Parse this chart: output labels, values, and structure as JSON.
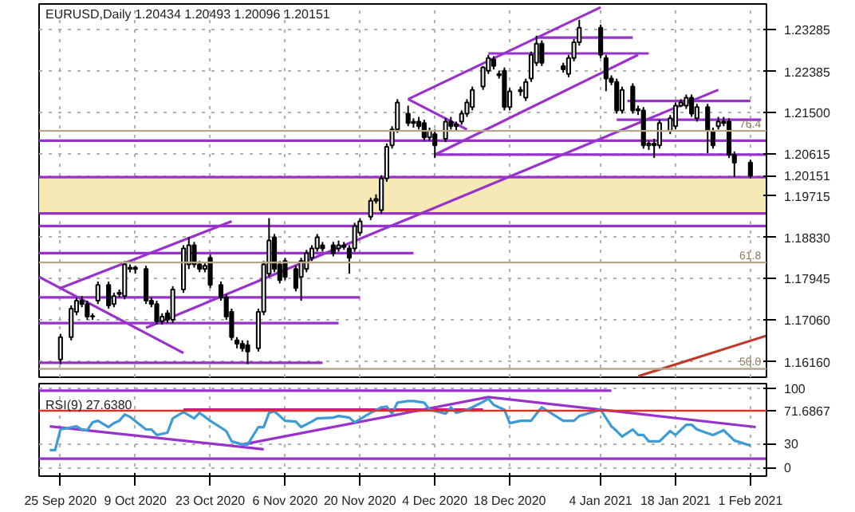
{
  "chart_data": [
    {
      "type": "candlestick",
      "title": "EURUSD,Daily  1.20434 1.20493 1.20096 1.20151",
      "tick_labels": "y",
      "grid": true,
      "xlim": [
        "2020-09-21",
        "2021-02-04"
      ],
      "ylim": [
        1.1583,
        1.2383
      ],
      "xticks": [
        "2020-09-25",
        "2020-10-09",
        "2020-10-23",
        "2020-11-06",
        "2020-11-20",
        "2020-12-04",
        "2020-12-18",
        "2021-01-04",
        "2021-01-18",
        "2021-02-01"
      ],
      "yticks": [
        {
          "value": 1.1616,
          "label": "1.16160"
        },
        {
          "value": 1.1706,
          "label": "1.17060"
        },
        1.17945,
        {
          "value": 1.1883,
          "label": "1.18830"
        },
        1.19715,
        1.20151,
        1.20615,
        {
          "value": 1.215,
          "label": "1.21500"
        },
        1.22385,
        1.23285
      ],
      "x": [
        "2020-09-25",
        "2020-09-27",
        "2020-09-28",
        "2020-09-29",
        "2020-09-30",
        "2020-10-01",
        "2020-10-02",
        "2020-10-04",
        "2020-10-05",
        "2020-10-06",
        "2020-10-07",
        "2020-10-08",
        "2020-10-09",
        "2020-10-11",
        "2020-10-12",
        "2020-10-13",
        "2020-10-14",
        "2020-10-15",
        "2020-10-16",
        "2020-10-18",
        "2020-10-19",
        "2020-10-20",
        "2020-10-21",
        "2020-10-22",
        "2020-10-23",
        "2020-10-25",
        "2020-10-26",
        "2020-10-27",
        "2020-10-28",
        "2020-10-29",
        "2020-10-30",
        "2020-11-01",
        "2020-11-02",
        "2020-11-03",
        "2020-11-04",
        "2020-11-05",
        "2020-11-06",
        "2020-11-08",
        "2020-11-09",
        "2020-11-10",
        "2020-11-11",
        "2020-11-12",
        "2020-11-13",
        "2020-11-15",
        "2020-11-16",
        "2020-11-17",
        "2020-11-18",
        "2020-11-19",
        "2020-11-20",
        "2020-11-22",
        "2020-11-23",
        "2020-11-24",
        "2020-11-25",
        "2020-11-26",
        "2020-11-27",
        "2020-11-29",
        "2020-11-30",
        "2020-12-01",
        "2020-12-02",
        "2020-12-03",
        "2020-12-04",
        "2020-12-06",
        "2020-12-07",
        "2020-12-08",
        "2020-12-09",
        "2020-12-10",
        "2020-12-11",
        "2020-12-13",
        "2020-12-14",
        "2020-12-15",
        "2020-12-16",
        "2020-12-17",
        "2020-12-18",
        "2020-12-20",
        "2020-12-21",
        "2020-12-22",
        "2020-12-23",
        "2020-12-24",
        "2020-12-28",
        "2020-12-29",
        "2020-12-30",
        "2020-12-31",
        "2021-01-04",
        "2021-01-05",
        "2021-01-06",
        "2021-01-07",
        "2021-01-08",
        "2021-01-10",
        "2021-01-11",
        "2021-01-12",
        "2021-01-13",
        "2021-01-14",
        "2021-01-15",
        "2021-01-17",
        "2021-01-18",
        "2021-01-19",
        "2021-01-20",
        "2021-01-21",
        "2021-01-22",
        "2021-01-24",
        "2021-01-25",
        "2021-01-26",
        "2021-01-27",
        "2021-01-28",
        "2021-01-29",
        "2021-02-01"
      ],
      "ohlc": [
        [
          1.1621,
          1.1676,
          1.1611,
          1.1669
        ],
        [
          1.1669,
          1.1737,
          1.1662,
          1.173
        ],
        [
          1.1723,
          1.1754,
          1.1716,
          1.1747
        ],
        [
          1.1747,
          1.1757,
          1.1733,
          1.174
        ],
        [
          1.174,
          1.1747,
          1.1706,
          1.1713
        ],
        [
          1.1713,
          1.172,
          1.1706,
          1.1714
        ],
        [
          1.1747,
          1.1788,
          1.174,
          1.1781
        ],
        [
          1.1781,
          1.1788,
          1.173,
          1.1737
        ],
        [
          1.174,
          1.1764,
          1.1733,
          1.1757
        ],
        [
          1.1764,
          1.1771,
          1.1754,
          1.1761
        ],
        [
          1.1757,
          1.1832,
          1.175,
          1.1825
        ],
        [
          1.1818,
          1.1825,
          1.1808,
          1.1815
        ],
        [
          1.1815,
          1.1822,
          1.1805,
          1.1818
        ],
        [
          1.1815,
          1.1822,
          1.174,
          1.1747
        ],
        [
          1.1747,
          1.1754,
          1.1733,
          1.174
        ],
        [
          1.174,
          1.1747,
          1.1696,
          1.1703
        ],
        [
          1.1703,
          1.172,
          1.1696,
          1.1713
        ],
        [
          1.172,
          1.1727,
          1.1699,
          1.1706
        ],
        [
          1.1706,
          1.1778,
          1.1699,
          1.1771
        ],
        [
          1.1771,
          1.1866,
          1.1764,
          1.1859
        ],
        [
          1.1825,
          1.1883,
          1.1815,
          1.1866
        ],
        [
          1.1866,
          1.1873,
          1.1818,
          1.1825
        ],
        [
          1.1825,
          1.1832,
          1.1808,
          1.1815
        ],
        [
          1.1815,
          1.1829,
          1.1808,
          1.1822
        ],
        [
          1.1839,
          1.1846,
          1.1774,
          1.1781
        ],
        [
          1.1781,
          1.1788,
          1.1747,
          1.1754
        ],
        [
          1.1754,
          1.1761,
          1.1706,
          1.1713
        ],
        [
          1.1723,
          1.173,
          1.1662,
          1.1669
        ],
        [
          1.1662,
          1.1669,
          1.1645,
          1.1655
        ],
        [
          1.1655,
          1.1662,
          1.1638,
          1.1645
        ],
        [
          1.1652,
          1.1662,
          1.1611,
          1.1638
        ],
        [
          1.1645,
          1.173,
          1.1638,
          1.1723
        ],
        [
          1.1723,
          1.1832,
          1.1716,
          1.1825
        ],
        [
          1.1805,
          1.1924,
          1.1798,
          1.1876
        ],
        [
          1.1883,
          1.189,
          1.1808,
          1.1815
        ],
        [
          1.1825,
          1.1832,
          1.1784,
          1.1791
        ],
        [
          1.1832,
          1.1839,
          1.1791,
          1.1798
        ],
        [
          1.1815,
          1.1822,
          1.1767,
          1.1774
        ],
        [
          1.1798,
          1.1839,
          1.1747,
          1.1832
        ],
        [
          1.1815,
          1.1856,
          1.1808,
          1.1849
        ],
        [
          1.1839,
          1.1866,
          1.1832,
          1.1859
        ],
        [
          1.1859,
          1.189,
          1.1852,
          1.1883
        ],
        [
          1.1866,
          1.1873,
          1.1852,
          1.1859
        ],
        [
          1.1866,
          1.1873,
          1.1842,
          1.1849
        ],
        [
          1.1859,
          1.1876,
          1.1852,
          1.1866
        ],
        [
          1.1866,
          1.1873,
          1.1856,
          1.1862
        ],
        [
          1.1859,
          1.1866,
          1.1805,
          1.1839
        ],
        [
          1.1859,
          1.1914,
          1.1852,
          1.1907
        ],
        [
          1.1893,
          1.1924,
          1.1886,
          1.1917
        ],
        [
          1.1927,
          1.1968,
          1.192,
          1.1961
        ],
        [
          1.1961,
          1.1975,
          1.1955,
          1.1965
        ],
        [
          1.1941,
          1.2016,
          1.1934,
          1.2009
        ],
        [
          1.2009,
          1.2084,
          1.2002,
          1.2077
        ],
        [
          1.208,
          1.2121,
          1.2073,
          1.2114
        ],
        [
          1.2114,
          1.2179,
          1.2107,
          1.2172
        ],
        [
          1.2148,
          1.2165,
          1.2121,
          1.2128
        ],
        [
          1.2128,
          1.2138,
          1.2118,
          1.2131
        ],
        [
          1.2131,
          1.2141,
          1.2114,
          1.2121
        ],
        [
          1.2128,
          1.2135,
          1.209,
          1.2097
        ],
        [
          1.2097,
          1.2118,
          1.209,
          1.2111
        ],
        [
          1.2104,
          1.2114,
          1.2053,
          1.208
        ],
        [
          1.2094,
          1.2138,
          1.2087,
          1.2131
        ],
        [
          1.2131,
          1.2141,
          1.2114,
          1.2121
        ],
        [
          1.2121,
          1.2131,
          1.2111,
          1.2125
        ],
        [
          1.2131,
          1.2155,
          1.2124,
          1.2148
        ],
        [
          1.2148,
          1.2179,
          1.2141,
          1.2172
        ],
        [
          1.2162,
          1.2206,
          1.2155,
          1.2199
        ],
        [
          1.2206,
          1.225,
          1.2199,
          1.2247
        ],
        [
          1.224,
          1.2274,
          1.2233,
          1.2267
        ],
        [
          1.2264,
          1.2271,
          1.2243,
          1.225
        ],
        [
          1.2233,
          1.224,
          1.2223,
          1.223
        ],
        [
          1.224,
          1.2247,
          1.2155,
          1.2162
        ],
        [
          1.2162,
          1.2203,
          1.2155,
          1.2196
        ],
        [
          1.2196,
          1.2206,
          1.2186,
          1.2199
        ],
        [
          1.2182,
          1.2223,
          1.2175,
          1.2216
        ],
        [
          1.2223,
          1.2281,
          1.2216,
          1.2274
        ],
        [
          1.2257,
          1.2315,
          1.225,
          1.2298
        ],
        [
          1.2298,
          1.2305,
          1.225,
          1.2257
        ],
        [
          1.225,
          1.2257,
          1.2236,
          1.2243
        ],
        [
          1.2233,
          1.2274,
          1.2226,
          1.2267
        ],
        [
          1.2267,
          1.2308,
          1.226,
          1.2301
        ],
        [
          1.2301,
          1.2349,
          1.2294,
          1.2332
        ],
        [
          1.2332,
          1.2339,
          1.2267,
          1.2274
        ],
        [
          1.2267,
          1.2274,
          1.2196,
          1.2223
        ],
        [
          1.2223,
          1.223,
          1.2209,
          1.2216
        ],
        [
          1.2216,
          1.2223,
          1.2148,
          1.2155
        ],
        [
          1.2155,
          1.2206,
          1.2148,
          1.2199
        ],
        [
          1.2206,
          1.2213,
          1.2148,
          1.2155
        ],
        [
          1.2155,
          1.2165,
          1.2145,
          1.2158
        ],
        [
          1.2155,
          1.2162,
          1.2073,
          1.208
        ],
        [
          1.208,
          1.209,
          1.207,
          1.2084
        ],
        [
          1.2084,
          1.2094,
          1.2053,
          1.208
        ],
        [
          1.208,
          1.2135,
          1.2073,
          1.2128
        ],
        [
          1.2111,
          1.2145,
          1.2104,
          1.2138
        ],
        [
          1.2121,
          1.2172,
          1.2114,
          1.2165
        ],
        [
          1.2165,
          1.2179,
          1.2162,
          1.2172
        ],
        [
          1.2165,
          1.2189,
          1.2158,
          1.2182
        ],
        [
          1.2182,
          1.2189,
          1.2141,
          1.2148
        ],
        [
          1.2138,
          1.2169,
          1.2131,
          1.2162
        ],
        [
          1.2162,
          1.2169,
          1.2063,
          1.2111
        ],
        [
          1.2111,
          1.2118,
          1.2073,
          1.208
        ],
        [
          1.2121,
          1.2141,
          1.2114,
          1.2131
        ],
        [
          1.2131,
          1.2141,
          1.2121,
          1.2128
        ],
        [
          1.2131,
          1.2138,
          1.2053,
          1.206
        ],
        [
          1.206,
          1.2067,
          1.2012,
          1.2043
        ],
        [
          1.20434,
          1.20493,
          1.20096,
          1.20151
        ]
      ],
      "series": [
        {
          "type": "line",
          "color": "#9932cc",
          "x": [
            "2020-09-21",
            "2021-02-04"
          ],
          "values": [
            1.209,
            1.209
          ]
        },
        {
          "type": "line",
          "color": "#9932cc",
          "x": [
            "2020-09-21",
            "2021-02-04"
          ],
          "values": [
            1.2012,
            1.2012
          ]
        },
        {
          "type": "line",
          "color": "#9932cc",
          "x": [
            "2020-09-21",
            "2021-02-04"
          ],
          "values": [
            1.1934,
            1.1934
          ]
        },
        {
          "type": "line",
          "color": "#9932cc",
          "x": [
            "2020-09-21",
            "2021-02-04"
          ],
          "values": [
            1.1907,
            1.1907
          ]
        },
        {
          "type": "line",
          "color": "#9932cc",
          "x": [
            "2020-09-21",
            "2020-11-30"
          ],
          "values": [
            1.1849,
            1.1849
          ]
        },
        {
          "type": "line",
          "color": "#9932cc",
          "x": [
            "2020-09-21",
            "2020-11-20"
          ],
          "values": [
            1.1754,
            1.1754
          ]
        },
        {
          "type": "line",
          "color": "#9932cc",
          "x": [
            "2020-09-21",
            "2020-11-16"
          ],
          "values": [
            1.1699,
            1.1699
          ]
        },
        {
          "type": "line",
          "color": "#9932cc",
          "x": [
            "2020-09-21",
            "2020-11-13"
          ],
          "values": [
            1.1614,
            1.1614
          ]
        },
        {
          "type": "line",
          "color": "#9932cc",
          "x": [
            "2021-01-09",
            "2021-02-01"
          ],
          "values": [
            1.2175,
            1.2175
          ]
        },
        {
          "type": "line",
          "color": "#9932cc",
          "x": [
            "2021-01-07",
            "2021-02-03"
          ],
          "values": [
            1.2135,
            1.2135
          ]
        },
        {
          "type": "line",
          "color": "#9932cc",
          "x": [
            "2020-12-04",
            "2021-02-04"
          ],
          "values": [
            1.206,
            1.206
          ]
        },
        {
          "type": "line",
          "color": "#9932cc",
          "x": [
            "2020-12-23",
            "2021-01-10"
          ],
          "values": [
            1.2311,
            1.2311
          ]
        },
        {
          "type": "line",
          "color": "#9932cc",
          "x": [
            "2020-12-14",
            "2021-01-13"
          ],
          "values": [
            1.2277,
            1.2277
          ]
        },
        {
          "type": "line",
          "color": "#9932cc",
          "x": [
            "2020-10-11",
            "2021-01-26"
          ],
          "values": [
            1.1689,
            1.2199
          ]
        },
        {
          "type": "line",
          "color": "#9932cc",
          "x": [
            "2020-11-29",
            "2021-01-04"
          ],
          "values": [
            1.2179,
            1.2376
          ]
        },
        {
          "type": "line",
          "color": "#9932cc",
          "x": [
            "2020-12-04",
            "2021-01-11"
          ],
          "values": [
            1.206,
            1.2274
          ]
        },
        {
          "type": "line",
          "color": "#9932cc",
          "x": [
            "2020-09-25",
            "2020-10-27"
          ],
          "values": [
            1.1774,
            1.1917
          ]
        },
        {
          "type": "line",
          "color": "#9932cc",
          "x": [
            "2020-09-21",
            "2020-10-18"
          ],
          "values": [
            1.1798,
            1.1635
          ]
        },
        {
          "type": "line",
          "color": "#9932cc",
          "x": [
            "2020-11-29",
            "2020-12-10"
          ],
          "values": [
            1.2179,
            1.2114
          ]
        },
        {
          "type": "line",
          "color": "#c0392b",
          "x": [
            "2021-01-11",
            "2021-02-04"
          ],
          "values": [
            1.1585,
            1.1672
          ]
        }
      ],
      "ref_lines": [
        {
          "axis": "y",
          "value": 1.2111,
          "color": "#b5a68c"
        },
        {
          "axis": "y",
          "value": 1.1829,
          "color": "#b5a68c"
        },
        {
          "axis": "y",
          "value": 1.1601,
          "color": "#b5a68c"
        }
      ],
      "bands": [
        {
          "axis": "y",
          "from": 1.1934,
          "to": 1.2012,
          "color": "#f6e9b5"
        }
      ],
      "annotations": [
        {
          "text": "76.4",
          "x": "2021-02-03",
          "y": 1.2111
        },
        {
          "text": "61.8",
          "x": "2021-02-03",
          "y": 1.1829
        },
        {
          "text": "50.0",
          "x": "2021-02-03",
          "y": 1.1601
        }
      ]
    },
    {
      "type": "line",
      "title": "RSI(9) 27.6380",
      "grid": true,
      "xlim": [
        "2020-09-21",
        "2021-02-04"
      ],
      "ylim": [
        -11,
        106
      ],
      "xticks": [
        {
          "value": "2020-09-25",
          "label": "25 Sep 2020"
        },
        {
          "value": "2020-10-09",
          "label": "9 Oct 2020"
        },
        {
          "value": "2020-10-23",
          "label": "23 Oct 2020"
        },
        {
          "value": "2020-11-06",
          "label": "6 Nov 2020"
        },
        {
          "value": "2020-11-20",
          "label": "20 Nov 2020"
        },
        {
          "value": "2020-12-04",
          "label": "4 Dec 2020"
        },
        {
          "value": "2020-12-18",
          "label": "18 Dec 2020"
        },
        {
          "value": "2021-01-04",
          "label": "4 Jan 2021"
        },
        {
          "value": "2021-01-18",
          "label": "18 Jan 2021"
        },
        {
          "value": "2021-02-01",
          "label": "1 Feb 2021"
        }
      ],
      "yticks": [
        0,
        30,
        100
      ],
      "series": [
        {
          "color": "#9932cc",
          "x": [
            "2020-09-21",
            "2021-01-06"
          ],
          "values": [
            97,
            97
          ]
        },
        {
          "color": "#9932cc",
          "x": [
            "2020-09-21",
            "2021-02-04"
          ],
          "values": [
            11,
            11
          ]
        },
        {
          "color": "#c71585",
          "x": [
            "2020-10-18",
            "2020-12-13"
          ],
          "values": [
            73,
            73
          ]
        },
        {
          "color": "#9932cc",
          "x": [
            "2020-09-23",
            "2020-11-02"
          ],
          "values": [
            52,
            23
          ]
        },
        {
          "color": "#9932cc",
          "x": [
            "2020-10-29",
            "2020-12-14",
            "2021-02-02"
          ],
          "values": [
            29,
            89,
            51
          ]
        },
        {
          "color": "#3d9bd6",
          "x": [
            "2020-09-23",
            "2020-09-24",
            "2020-09-25",
            "2020-09-28",
            "2020-09-29",
            "2020-09-30",
            "2020-10-01",
            "2020-10-02",
            "2020-10-04",
            "2020-10-05",
            "2020-10-06",
            "2020-10-07",
            "2020-10-08",
            "2020-10-11",
            "2020-10-12",
            "2020-10-13",
            "2020-10-15",
            "2020-10-16",
            "2020-10-18",
            "2020-10-20",
            "2020-10-21",
            "2020-10-23",
            "2020-10-26",
            "2020-10-27",
            "2020-10-29",
            "2020-10-30",
            "2020-11-01",
            "2020-11-02",
            "2020-11-03",
            "2020-11-04",
            "2020-11-06",
            "2020-11-08",
            "2020-11-09",
            "2020-11-11",
            "2020-11-12",
            "2020-11-15",
            "2020-11-16",
            "2020-11-18",
            "2020-11-19",
            "2020-11-22",
            "2020-11-24",
            "2020-11-25",
            "2020-11-26",
            "2020-11-27",
            "2020-11-29",
            "2020-11-30",
            "2020-12-02",
            "2020-12-03",
            "2020-12-06",
            "2020-12-07",
            "2020-12-08",
            "2020-12-10",
            "2020-12-11",
            "2020-12-13",
            "2020-12-14",
            "2020-12-15",
            "2020-12-17",
            "2020-12-18",
            "2020-12-20",
            "2020-12-22",
            "2020-12-23",
            "2020-12-24",
            "2020-12-28",
            "2020-12-30",
            "2020-12-31",
            "2021-01-04",
            "2021-01-06",
            "2021-01-07",
            "2021-01-08",
            "2021-01-10",
            "2021-01-11",
            "2021-01-12",
            "2021-01-13",
            "2021-01-15",
            "2021-01-17",
            "2021-01-18",
            "2021-01-20",
            "2021-01-21",
            "2021-01-22",
            "2021-01-25",
            "2021-01-26",
            "2021-01-27",
            "2021-01-29",
            "2021-02-01"
          ],
          "values": [
            22,
            22,
            48,
            52,
            48,
            47,
            57,
            59,
            51,
            56,
            59,
            67,
            64,
            48,
            48,
            41,
            44,
            62,
            70,
            62,
            69,
            59,
            46,
            33,
            29,
            29,
            51,
            51,
            69,
            71,
            59,
            58,
            51,
            58,
            62,
            63,
            65,
            63,
            57,
            69,
            76,
            77,
            68,
            82,
            84,
            84,
            82,
            73,
            68,
            76,
            69,
            73,
            76,
            83,
            87,
            79,
            73,
            56,
            59,
            59,
            68,
            76,
            59,
            59,
            65,
            73,
            52,
            46,
            39,
            48,
            41,
            41,
            33,
            33,
            46,
            41,
            54,
            54,
            48,
            41,
            44,
            47,
            34,
            27.638
          ]
        }
      ],
      "ref_lines": [
        {
          "axis": "y",
          "value": 71.6867,
          "label": "71.6867",
          "color": "#e03020"
        }
      ]
    }
  ]
}
